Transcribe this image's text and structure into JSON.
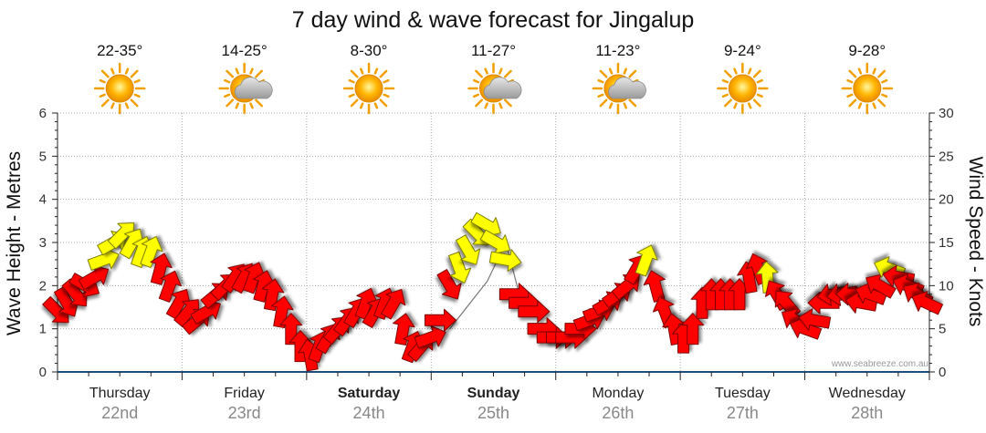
{
  "chart_data": {
    "type": "line",
    "title": "7 day wind & wave forecast for Jingalup",
    "ylabel_left": "Wave Height - Metres",
    "ylabel_right": "Wind Speed - Knots",
    "ylim_left": [
      0,
      6
    ],
    "ylim_right": [
      0,
      30
    ],
    "yticks_left": [
      "0",
      "1",
      "2",
      "3",
      "4",
      "5",
      "6"
    ],
    "yticks_right": [
      "0",
      "5",
      "10",
      "15",
      "20",
      "25",
      "30"
    ],
    "watermark": "www.seabreeze.com.au",
    "days": [
      {
        "name": "Thursday",
        "date": "22nd",
        "temp": "22-35°",
        "icon": "sun-icon",
        "bold": false
      },
      {
        "name": "Friday",
        "date": "23rd",
        "temp": "14-25°",
        "icon": "sun-cloud-icon",
        "bold": false
      },
      {
        "name": "Saturday",
        "date": "24th",
        "temp": "8-30°",
        "icon": "sun-icon",
        "bold": true
      },
      {
        "name": "Sunday",
        "date": "25th",
        "temp": "11-27°",
        "icon": "sun-cloud-icon",
        "bold": true
      },
      {
        "name": "Monday",
        "date": "26th",
        "temp": "11-23°",
        "icon": "sun-cloud-icon",
        "bold": false
      },
      {
        "name": "Tuesday",
        "date": "27th",
        "temp": "9-24°",
        "icon": "sun-icon",
        "bold": false
      },
      {
        "name": "Wednesday",
        "date": "28th",
        "temp": "9-28°",
        "icon": "sun-icon",
        "bold": false
      }
    ],
    "wind_series": [
      {
        "t": 0.0,
        "knots": 7,
        "dir": 315,
        "color": "red"
      },
      {
        "t": 0.15,
        "knots": 8,
        "dir": 330,
        "color": "red"
      },
      {
        "t": 0.3,
        "knots": 9,
        "dir": 320,
        "color": "red"
      },
      {
        "t": 0.45,
        "knots": 10,
        "dir": 300,
        "color": "red"
      },
      {
        "t": 0.6,
        "knots": 11,
        "dir": 240,
        "color": "red"
      },
      {
        "t": 0.75,
        "knots": 13,
        "dir": 250,
        "color": "yellow"
      },
      {
        "t": 0.9,
        "knots": 15,
        "dir": 240,
        "color": "yellow"
      },
      {
        "t": 1.05,
        "knots": 16,
        "dir": 225,
        "color": "yellow"
      },
      {
        "t": 1.2,
        "knots": 15,
        "dir": 210,
        "color": "yellow"
      },
      {
        "t": 1.35,
        "knots": 14,
        "dir": 200,
        "color": "yellow"
      },
      {
        "t": 1.5,
        "knots": 14,
        "dir": 200,
        "color": "yellow"
      },
      {
        "t": 1.65,
        "knots": 12,
        "dir": 195,
        "color": "red"
      },
      {
        "t": 1.8,
        "knots": 10,
        "dir": 200,
        "color": "red"
      },
      {
        "t": 1.95,
        "knots": 8,
        "dir": 210,
        "color": "red"
      },
      {
        "t": 2.1,
        "knots": 7,
        "dir": 220,
        "color": "red"
      },
      {
        "t": 2.25,
        "knots": 6,
        "dir": 230,
        "color": "red"
      },
      {
        "t": 2.4,
        "knots": 7,
        "dir": 240,
        "color": "red"
      },
      {
        "t": 2.55,
        "knots": 9,
        "dir": 230,
        "color": "red"
      },
      {
        "t": 2.7,
        "knots": 10,
        "dir": 225,
        "color": "red"
      },
      {
        "t": 2.85,
        "knots": 11,
        "dir": 215,
        "color": "red"
      },
      {
        "t": 3.0,
        "knots": 11,
        "dir": 210,
        "color": "red"
      },
      {
        "t": 3.15,
        "knots": 11,
        "dir": 200,
        "color": "red"
      },
      {
        "t": 3.3,
        "knots": 10,
        "dir": 195,
        "color": "red"
      },
      {
        "t": 3.45,
        "knots": 9,
        "dir": 190,
        "color": "red"
      },
      {
        "t": 3.6,
        "knots": 7,
        "dir": 190,
        "color": "red"
      },
      {
        "t": 3.75,
        "knots": 5,
        "dir": 180,
        "color": "red"
      },
      {
        "t": 3.9,
        "knots": 3,
        "dir": 180,
        "color": "red"
      },
      {
        "t": 4.05,
        "knots": 2,
        "dir": 170,
        "color": "red"
      },
      {
        "t": 4.2,
        "knots": 3,
        "dir": 200,
        "color": "red"
      },
      {
        "t": 4.35,
        "knots": 4,
        "dir": 210,
        "color": "red"
      },
      {
        "t": 4.5,
        "knots": 5,
        "dir": 220,
        "color": "red"
      },
      {
        "t": 4.65,
        "knots": 6,
        "dir": 215,
        "color": "red"
      },
      {
        "t": 4.8,
        "knots": 7,
        "dir": 210,
        "color": "red"
      },
      {
        "t": 4.95,
        "knots": 8,
        "dir": 200,
        "color": "red"
      },
      {
        "t": 5.1,
        "knots": 7,
        "dir": 210,
        "color": "red"
      },
      {
        "t": 5.25,
        "knots": 8,
        "dir": 200,
        "color": "red"
      },
      {
        "t": 5.4,
        "knots": 8,
        "dir": 210,
        "color": "red"
      },
      {
        "t": 5.55,
        "knots": 5,
        "dir": 190,
        "color": "red"
      },
      {
        "t": 5.7,
        "knots": 3,
        "dir": 200,
        "color": "red"
      },
      {
        "t": 5.85,
        "knots": 3,
        "dir": 220,
        "color": "red"
      },
      {
        "t": 6.0,
        "knots": 4,
        "dir": 250,
        "color": "red"
      },
      {
        "t": 6.15,
        "knots": 6,
        "dir": 270,
        "color": "red"
      },
      {
        "t": 6.3,
        "knots": 10,
        "dir": 330,
        "color": "red"
      },
      {
        "t": 6.45,
        "knots": 12,
        "dir": 340,
        "color": "yellow"
      },
      {
        "t": 6.6,
        "knots": 14,
        "dir": 330,
        "color": "yellow"
      },
      {
        "t": 6.75,
        "knots": 16,
        "dir": 315,
        "color": "yellow"
      },
      {
        "t": 6.9,
        "knots": 17,
        "dir": 300,
        "color": "yellow"
      },
      {
        "t": 7.05,
        "knots": 15,
        "dir": 300,
        "color": "yellow"
      },
      {
        "t": 7.2,
        "knots": 13,
        "dir": 280,
        "color": "yellow"
      },
      {
        "t": 7.35,
        "knots": 9,
        "dir": 270,
        "color": "red"
      },
      {
        "t": 7.5,
        "knots": 8,
        "dir": 270,
        "color": "red"
      },
      {
        "t": 7.65,
        "knots": 7,
        "dir": 270,
        "color": "red"
      },
      {
        "t": 7.8,
        "knots": 5,
        "dir": 270,
        "color": "red"
      },
      {
        "t": 7.95,
        "knots": 4,
        "dir": 270,
        "color": "red"
      },
      {
        "t": 8.1,
        "knots": 4,
        "dir": 270,
        "color": "red"
      },
      {
        "t": 8.25,
        "knots": 4,
        "dir": 270,
        "color": "red"
      },
      {
        "t": 8.4,
        "knots": 5,
        "dir": 270,
        "color": "red"
      },
      {
        "t": 8.55,
        "knots": 6,
        "dir": 250,
        "color": "red"
      },
      {
        "t": 8.7,
        "knots": 7,
        "dir": 250,
        "color": "red"
      },
      {
        "t": 8.85,
        "knots": 8,
        "dir": 240,
        "color": "red"
      },
      {
        "t": 9.0,
        "knots": 9,
        "dir": 235,
        "color": "red"
      },
      {
        "t": 9.15,
        "knots": 10,
        "dir": 230,
        "color": "red"
      },
      {
        "t": 9.3,
        "knots": 12,
        "dir": 210,
        "color": "red"
      },
      {
        "t": 9.45,
        "knots": 13,
        "dir": 200,
        "color": "yellow"
      },
      {
        "t": 9.6,
        "knots": 10,
        "dir": 165,
        "color": "red"
      },
      {
        "t": 9.75,
        "knots": 7,
        "dir": 160,
        "color": "red"
      },
      {
        "t": 9.9,
        "knots": 5,
        "dir": 170,
        "color": "red"
      },
      {
        "t": 10.05,
        "knots": 4,
        "dir": 180,
        "color": "red"
      },
      {
        "t": 10.2,
        "knots": 5,
        "dir": 180,
        "color": "red"
      },
      {
        "t": 10.35,
        "knots": 8,
        "dir": 180,
        "color": "red"
      },
      {
        "t": 10.5,
        "knots": 9,
        "dir": 180,
        "color": "red"
      },
      {
        "t": 10.65,
        "knots": 9,
        "dir": 180,
        "color": "red"
      },
      {
        "t": 10.8,
        "knots": 9,
        "dir": 180,
        "color": "red"
      },
      {
        "t": 10.95,
        "knots": 9,
        "dir": 180,
        "color": "red"
      },
      {
        "t": 11.1,
        "knots": 11,
        "dir": 170,
        "color": "red"
      },
      {
        "t": 11.25,
        "knots": 12,
        "dir": 160,
        "color": "red"
      },
      {
        "t": 11.4,
        "knots": 11,
        "dir": 175,
        "color": "yellow"
      },
      {
        "t": 11.55,
        "knots": 9,
        "dir": 150,
        "color": "red"
      },
      {
        "t": 11.7,
        "knots": 8,
        "dir": 140,
        "color": "red"
      },
      {
        "t": 11.85,
        "knots": 6,
        "dir": 120,
        "color": "red"
      },
      {
        "t": 12.0,
        "knots": 5,
        "dir": 110,
        "color": "red"
      },
      {
        "t": 12.15,
        "knots": 6,
        "dir": 100,
        "color": "red"
      },
      {
        "t": 12.3,
        "knots": 8,
        "dir": 90,
        "color": "red"
      },
      {
        "t": 12.45,
        "knots": 9,
        "dir": 80,
        "color": "red"
      },
      {
        "t": 12.6,
        "knots": 9,
        "dir": 80,
        "color": "red"
      },
      {
        "t": 12.75,
        "knots": 9,
        "dir": 90,
        "color": "red"
      },
      {
        "t": 12.9,
        "knots": 8,
        "dir": 100,
        "color": "red"
      },
      {
        "t": 13.05,
        "knots": 9,
        "dir": 110,
        "color": "red"
      },
      {
        "t": 13.2,
        "knots": 10,
        "dir": 120,
        "color": "red"
      },
      {
        "t": 13.35,
        "knots": 12,
        "dir": 110,
        "color": "yellow"
      },
      {
        "t": 13.5,
        "knots": 11,
        "dir": 100,
        "color": "red"
      },
      {
        "t": 13.65,
        "knots": 10,
        "dir": 110,
        "color": "red"
      },
      {
        "t": 13.8,
        "knots": 9,
        "dir": 120,
        "color": "red"
      },
      {
        "t": 13.95,
        "knots": 8,
        "dir": 115,
        "color": "red"
      }
    ],
    "wave_series": [
      {
        "t": 6.3,
        "metres": 1.0
      },
      {
        "t": 6.9,
        "metres": 2.1
      },
      {
        "t": 7.2,
        "metres": 3.0
      },
      {
        "t": 7.45,
        "metres": 1.6
      }
    ]
  }
}
